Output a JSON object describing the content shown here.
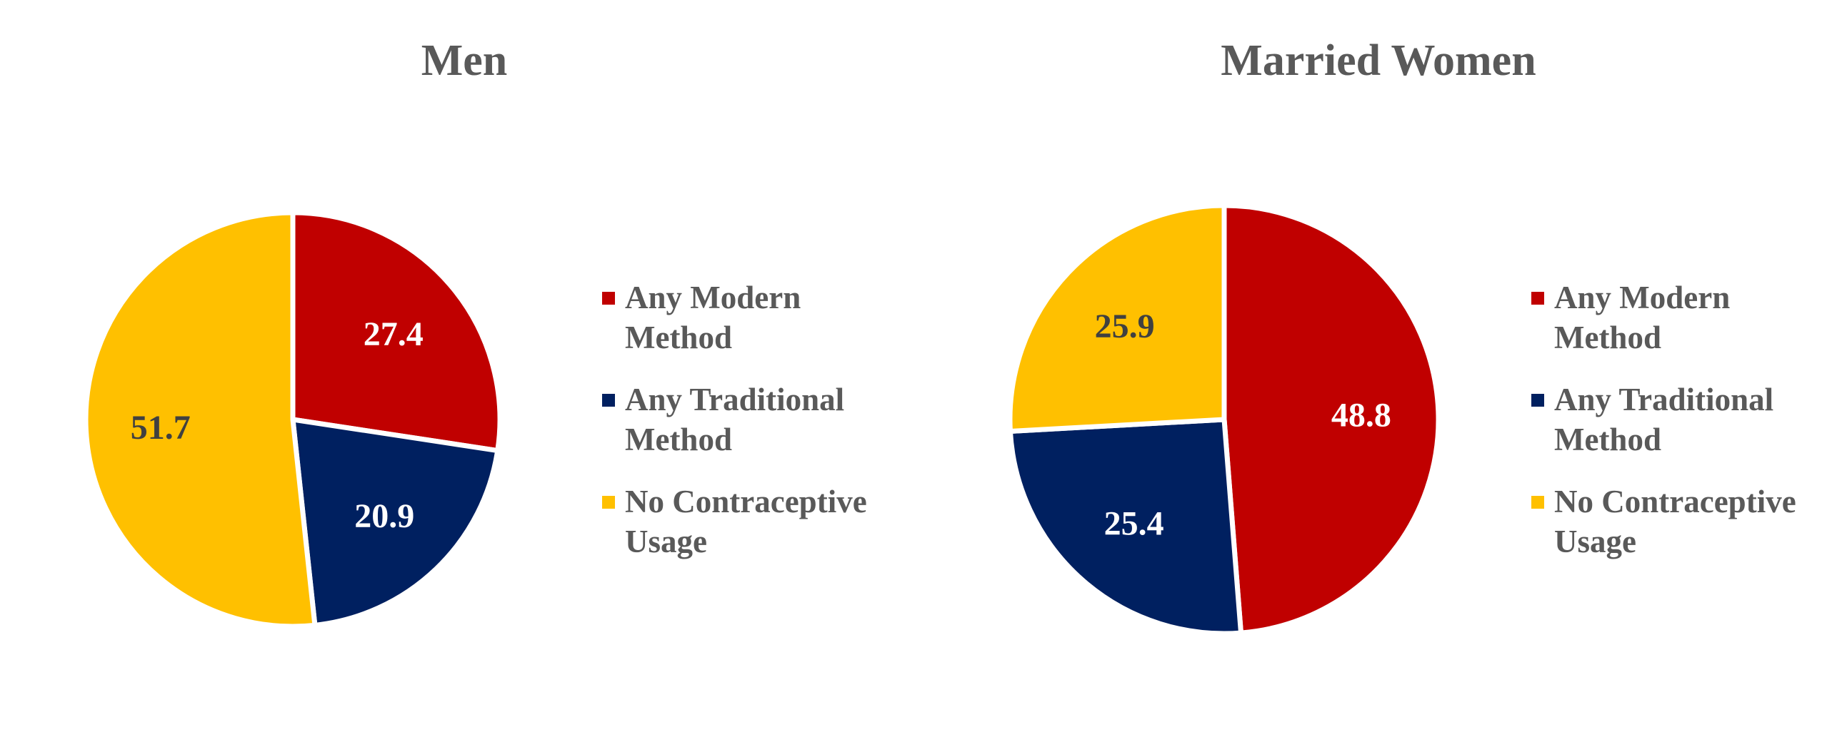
{
  "chart_data": [
    {
      "type": "pie",
      "title": "Men",
      "categories": [
        "Any Modern Method",
        "Any Traditional Method",
        "No Contraceptive Usage"
      ],
      "values": [
        27.4,
        20.9,
        51.7
      ],
      "value_labels": [
        "27.4",
        "20.9",
        "51.7"
      ],
      "colors": [
        "#C00000",
        "#002060",
        "#FFC000"
      ],
      "label_colors": [
        "#FFFFFF",
        "#FFFFFF",
        "#404040"
      ],
      "legend": {
        "position": "right",
        "entries": [
          [
            "Any Modern",
            "Method"
          ],
          [
            "Any Traditional",
            "Method"
          ],
          [
            "No Contraceptive",
            "Usage"
          ]
        ]
      }
    },
    {
      "type": "pie",
      "title": "Married Women",
      "categories": [
        "Any Modern Method",
        "Any Traditional Method",
        "No Contraceptive Usage"
      ],
      "values": [
        48.8,
        25.4,
        25.9
      ],
      "value_labels": [
        "48.8",
        "25.4",
        "25.9"
      ],
      "colors": [
        "#C00000",
        "#002060",
        "#FFC000"
      ],
      "label_colors": [
        "#FFFFFF",
        "#FFFFFF",
        "#404040"
      ],
      "legend": {
        "position": "right",
        "entries": [
          [
            "Any Modern",
            "Method"
          ],
          [
            "Any Traditional",
            "Method"
          ],
          [
            "No Contraceptive",
            "Usage"
          ]
        ]
      }
    }
  ]
}
